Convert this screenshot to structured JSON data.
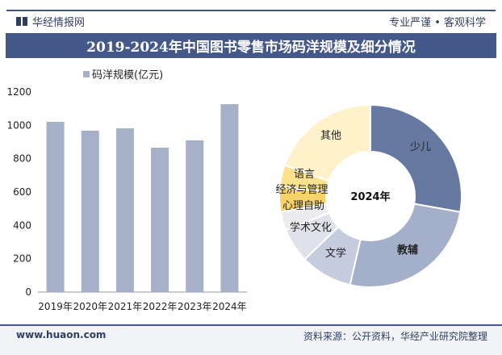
{
  "header": {
    "brand": "华经情报网",
    "slogan": "专业严谨 • 客观科学",
    "title": "2019-2024年中国图书零售市场码洋规模及细分情况"
  },
  "footer": {
    "website": "www.huaon.com",
    "source": "资料来源：公开资料，华经产业研究院整理"
  },
  "watermark": "华经产业研究院",
  "chart_data": [
    {
      "type": "bar",
      "categories": [
        "2019年",
        "2020年",
        "2021年",
        "2022年",
        "2023年",
        "2024年"
      ],
      "series": [
        {
          "name": "码洋规模(亿元)",
          "values": [
            1021,
            968,
            982,
            866,
            910,
            1127
          ],
          "color": "#a6b0c8"
        }
      ],
      "ylim": [
        0,
        1200
      ],
      "yticks": [
        0,
        200,
        400,
        600,
        800,
        1000,
        1200
      ],
      "legend": "top-left",
      "grid": false
    },
    {
      "type": "pie",
      "donut": true,
      "center_label": "2024年",
      "categories": [
        "少儿",
        "教辅",
        "文学",
        "学术文化",
        "心理自助",
        "经济与管理",
        "语言",
        "其他"
      ],
      "values": [
        27.8,
        25.8,
        9.2,
        6.1,
        3.3,
        4.4,
        3.9,
        19.5
      ],
      "colors": [
        "#667aa1",
        "#a4b0ca",
        "#c5ccde",
        "#dfe2eb",
        "#ececee",
        "#f8d36a",
        "#fde28e",
        "#fff1c9"
      ]
    }
  ]
}
